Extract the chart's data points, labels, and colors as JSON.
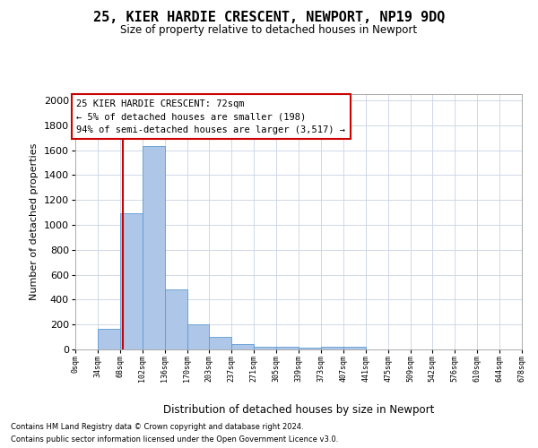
{
  "title": "25, KIER HARDIE CRESCENT, NEWPORT, NP19 9DQ",
  "subtitle": "Size of property relative to detached houses in Newport",
  "xlabel": "Distribution of detached houses by size in Newport",
  "ylabel": "Number of detached properties",
  "annotation_title": "25 KIER HARDIE CRESCENT: 72sqm",
  "annotation_line1": "← 5% of detached houses are smaller (198)",
  "annotation_line2": "94% of semi-detached houses are larger (3,517) →",
  "footer_line1": "Contains HM Land Registry data © Crown copyright and database right 2024.",
  "footer_line2": "Contains public sector information licensed under the Open Government Licence v3.0.",
  "bar_color": "#aec6e8",
  "bar_edge_color": "#5b9bd5",
  "grid_color": "#d0d8e8",
  "annotation_box_color": "#cc0000",
  "vertical_line_x": 72,
  "bins": [
    0,
    34,
    68,
    102,
    136,
    170,
    203,
    237,
    271,
    305,
    339,
    373,
    407,
    441,
    475,
    509,
    542,
    576,
    610,
    644,
    678
  ],
  "values": [
    0,
    165,
    1095,
    1630,
    480,
    200,
    100,
    45,
    25,
    20,
    15,
    20,
    20,
    0,
    0,
    0,
    0,
    0,
    0,
    0
  ],
  "ylim": [
    0,
    2050
  ],
  "yticks": [
    0,
    200,
    400,
    600,
    800,
    1000,
    1200,
    1400,
    1600,
    1800,
    2000
  ],
  "bin_labels": [
    "0sqm",
    "34sqm",
    "68sqm",
    "102sqm",
    "136sqm",
    "170sqm",
    "203sqm",
    "237sqm",
    "271sqm",
    "305sqm",
    "339sqm",
    "373sqm",
    "407sqm",
    "441sqm",
    "475sqm",
    "509sqm",
    "542sqm",
    "576sqm",
    "610sqm",
    "644sqm",
    "678sqm"
  ]
}
